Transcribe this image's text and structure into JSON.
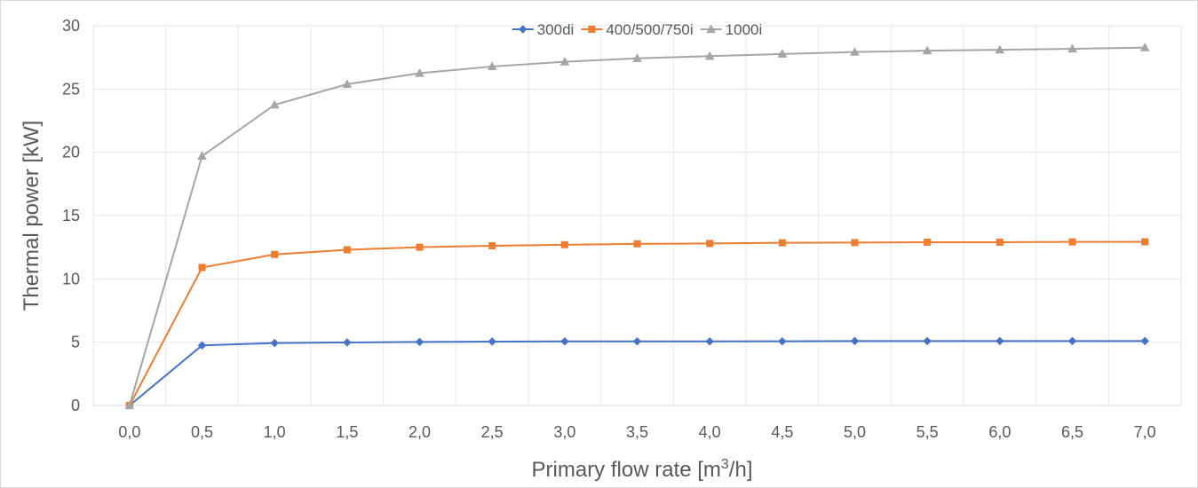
{
  "chart_data": {
    "type": "line",
    "title": "",
    "xlabel": "Primary flow rate [m³/h]",
    "xlabel_parts": {
      "before": "Primary flow rate [m",
      "superscript": "3",
      "after": "/h]"
    },
    "ylabel": "Thermal power [kW]",
    "ylim": [
      0,
      30
    ],
    "yticks": [
      0,
      5,
      10,
      15,
      20,
      25,
      30
    ],
    "ytick_labels": [
      "0",
      "5",
      "10",
      "15",
      "20",
      "25",
      "30"
    ],
    "x": [
      0.0,
      0.5,
      1.0,
      1.5,
      2.0,
      2.5,
      3.0,
      3.5,
      4.0,
      4.5,
      5.0,
      5.5,
      6.0,
      6.5,
      7.0
    ],
    "categories": [
      "0,0",
      "0,5",
      "1,0",
      "1,5",
      "2,0",
      "2,5",
      "3,0",
      "3,5",
      "4,0",
      "4,5",
      "5,0",
      "5,5",
      "6,0",
      "6,5",
      "7,0"
    ],
    "grid": "both",
    "legend": "top-center",
    "series": [
      {
        "name": "300di",
        "color": "#4472c4",
        "marker": "diamond",
        "values": [
          0.0,
          4.75,
          4.93,
          4.98,
          5.02,
          5.05,
          5.06,
          5.06,
          5.06,
          5.07,
          5.09,
          5.09,
          5.09,
          5.09,
          5.09
        ]
      },
      {
        "name": "400/500/750i",
        "color": "#ed7d31",
        "marker": "square",
        "values": [
          0.0,
          10.9,
          11.93,
          12.3,
          12.5,
          12.62,
          12.7,
          12.77,
          12.8,
          12.85,
          12.87,
          12.9,
          12.9,
          12.92,
          12.93
        ]
      },
      {
        "name": "1000i",
        "color": "#a5a5a5",
        "marker": "triangle",
        "values": [
          0.0,
          19.7,
          23.75,
          25.38,
          26.25,
          26.78,
          27.15,
          27.42,
          27.6,
          27.77,
          27.92,
          28.03,
          28.1,
          28.18,
          28.27
        ]
      }
    ]
  }
}
